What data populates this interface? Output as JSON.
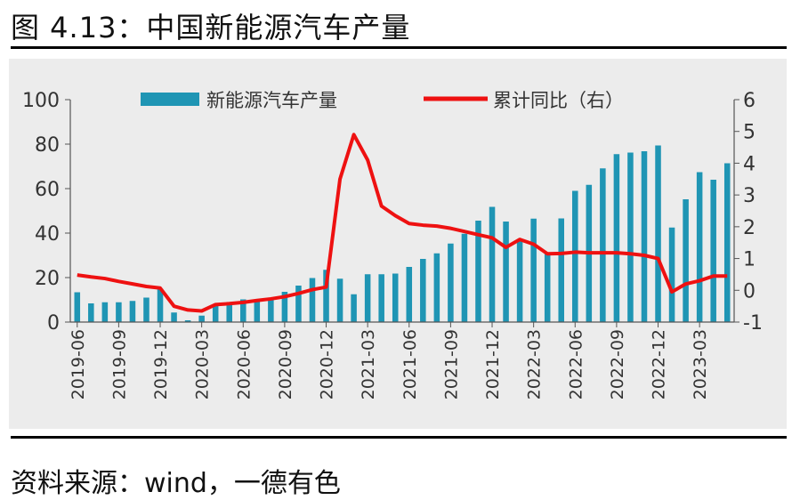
{
  "figure_title": "图 4.13：中国新能源汽车产量",
  "source_text": "资料来源：wind，一德有色",
  "colors": {
    "bar": "#1f95b4",
    "line": "#ee1111",
    "panel": "#ececec",
    "axis": "#555555"
  },
  "chart_data": {
    "type": "bar",
    "grid": false,
    "legend_position": "top",
    "x": [
      "2019-06",
      "2019-07",
      "2019-08",
      "2019-09",
      "2019-10",
      "2019-11",
      "2019-12",
      "2020-01",
      "2020-02",
      "2020-03",
      "2020-04",
      "2020-05",
      "2020-06",
      "2020-07",
      "2020-08",
      "2020-09",
      "2020-10",
      "2020-11",
      "2020-12",
      "2021-01",
      "2021-02",
      "2021-03",
      "2021-04",
      "2021-05",
      "2021-06",
      "2021-07",
      "2021-08",
      "2021-09",
      "2021-10",
      "2021-11",
      "2021-12",
      "2022-01",
      "2022-02",
      "2022-03",
      "2022-04",
      "2022-05",
      "2022-06",
      "2022-07",
      "2022-08",
      "2022-09",
      "2022-10",
      "2022-11",
      "2022-12",
      "2023-01",
      "2023-02",
      "2023-03",
      "2023-04",
      "2023-05"
    ],
    "x_tick_labels": [
      "2019-06",
      "2019-09",
      "2019-12",
      "2020-03",
      "2020-06",
      "2020-09",
      "2020-12",
      "2021-03",
      "2021-06",
      "2021-09",
      "2021-12",
      "2022-03",
      "2022-06",
      "2022-09",
      "2022-12",
      "2023-03"
    ],
    "series": [
      {
        "name": "新能源汽车产量",
        "type": "bar",
        "axis": "left",
        "values": [
          13.4,
          8.4,
          8.9,
          8.9,
          9.5,
          11,
          14.9,
          4.3,
          0.8,
          2.9,
          8.1,
          8.3,
          10.2,
          10,
          10.5,
          13.6,
          16.4,
          19.8,
          23.5,
          19.5,
          12.5,
          21.5,
          21.5,
          21.8,
          24.8,
          28.4,
          30.9,
          35.3,
          39.7,
          45.6,
          51.8,
          45.2,
          36.8,
          46.5,
          31.2,
          46.6,
          59,
          61.7,
          69.1,
          75.5,
          76.2,
          76.8,
          79.4,
          42.5,
          55.2,
          67.4,
          64,
          71.4
        ]
      },
      {
        "name": "累计同比（右）",
        "type": "line",
        "axis": "right",
        "values": [
          0.48,
          0.42,
          0.37,
          0.28,
          0.2,
          0.12,
          0.07,
          -0.5,
          -0.62,
          -0.65,
          -0.45,
          -0.42,
          -0.38,
          -0.32,
          -0.27,
          -0.2,
          -0.1,
          0.02,
          0.1,
          3.5,
          4.9,
          4.1,
          2.65,
          2.35,
          2.1,
          2.05,
          2.02,
          1.95,
          1.85,
          1.75,
          1.65,
          1.35,
          1.6,
          1.45,
          1.15,
          1.16,
          1.2,
          1.18,
          1.18,
          1.18,
          1.15,
          1.1,
          1.0,
          -0.05,
          0.2,
          0.3,
          0.45,
          0.45
        ]
      }
    ],
    "y_left": {
      "min": 0,
      "max": 100,
      "ticks": [
        0,
        20,
        40,
        60,
        80,
        100
      ]
    },
    "y_right": {
      "min": -1,
      "max": 6,
      "ticks": [
        -1,
        0,
        1,
        2,
        3,
        4,
        5,
        6
      ]
    }
  }
}
